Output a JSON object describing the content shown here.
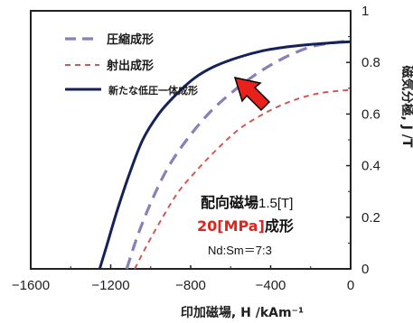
{
  "chart_data": {
    "type": "line",
    "xlabel": "印加磁場, H /kAm⁻¹",
    "ylabel": "磁気分極, J /T",
    "xlim": [
      -1600,
      0
    ],
    "ylim": [
      0,
      1
    ],
    "x_ticks": [
      "−1600",
      "−1200",
      "−800",
      "−400",
      "0"
    ],
    "y_ticks": [
      "0",
      "0.2",
      "0.4",
      "0.6",
      "0.8",
      "1"
    ],
    "legend_position": "top-left",
    "series": [
      {
        "name": "圧縮成形",
        "style": "dashed",
        "color": "#8a7fb8",
        "points": [
          [
            -1120,
            0
          ],
          [
            -1060,
            0.14
          ],
          [
            -980,
            0.29
          ],
          [
            -900,
            0.41
          ],
          [
            -800,
            0.52
          ],
          [
            -700,
            0.61
          ],
          [
            -600,
            0.68
          ],
          [
            -500,
            0.74
          ],
          [
            -400,
            0.79
          ],
          [
            -300,
            0.83
          ],
          [
            -200,
            0.86
          ],
          [
            -100,
            0.875
          ],
          [
            0,
            0.885
          ]
        ]
      },
      {
        "name": "射出成形",
        "style": "dashed",
        "color": "#cf5a55",
        "points": [
          [
            -1080,
            0
          ],
          [
            -1020,
            0.09
          ],
          [
            -940,
            0.2
          ],
          [
            -860,
            0.3
          ],
          [
            -760,
            0.39
          ],
          [
            -660,
            0.47
          ],
          [
            -560,
            0.54
          ],
          [
            -460,
            0.59
          ],
          [
            -360,
            0.63
          ],
          [
            -260,
            0.66
          ],
          [
            -160,
            0.68
          ],
          [
            -60,
            0.69
          ],
          [
            0,
            0.693
          ]
        ]
      },
      {
        "name": "新たな低圧一体成形",
        "style": "solid",
        "color": "#14215a",
        "points": [
          [
            -1255,
            0
          ],
          [
            -1220,
            0.09
          ],
          [
            -1170,
            0.22
          ],
          [
            -1110,
            0.36
          ],
          [
            -1040,
            0.5
          ],
          [
            -960,
            0.6
          ],
          [
            -880,
            0.67
          ],
          [
            -780,
            0.74
          ],
          [
            -680,
            0.785
          ],
          [
            -560,
            0.82
          ],
          [
            -440,
            0.845
          ],
          [
            -320,
            0.86
          ],
          [
            -200,
            0.87
          ],
          [
            -80,
            0.877
          ],
          [
            0,
            0.88
          ]
        ]
      }
    ],
    "annotations": {
      "text1_main": "配向磁場",
      "text1_sub": "1.5[T]",
      "text2_highlight": "20[MPa]",
      "text2_rest": "成形",
      "text3": "Nd:Sm＝7:3"
    },
    "arrow": {
      "color": "#e8211b",
      "points_to": [
        -500,
        0.79
      ]
    }
  }
}
